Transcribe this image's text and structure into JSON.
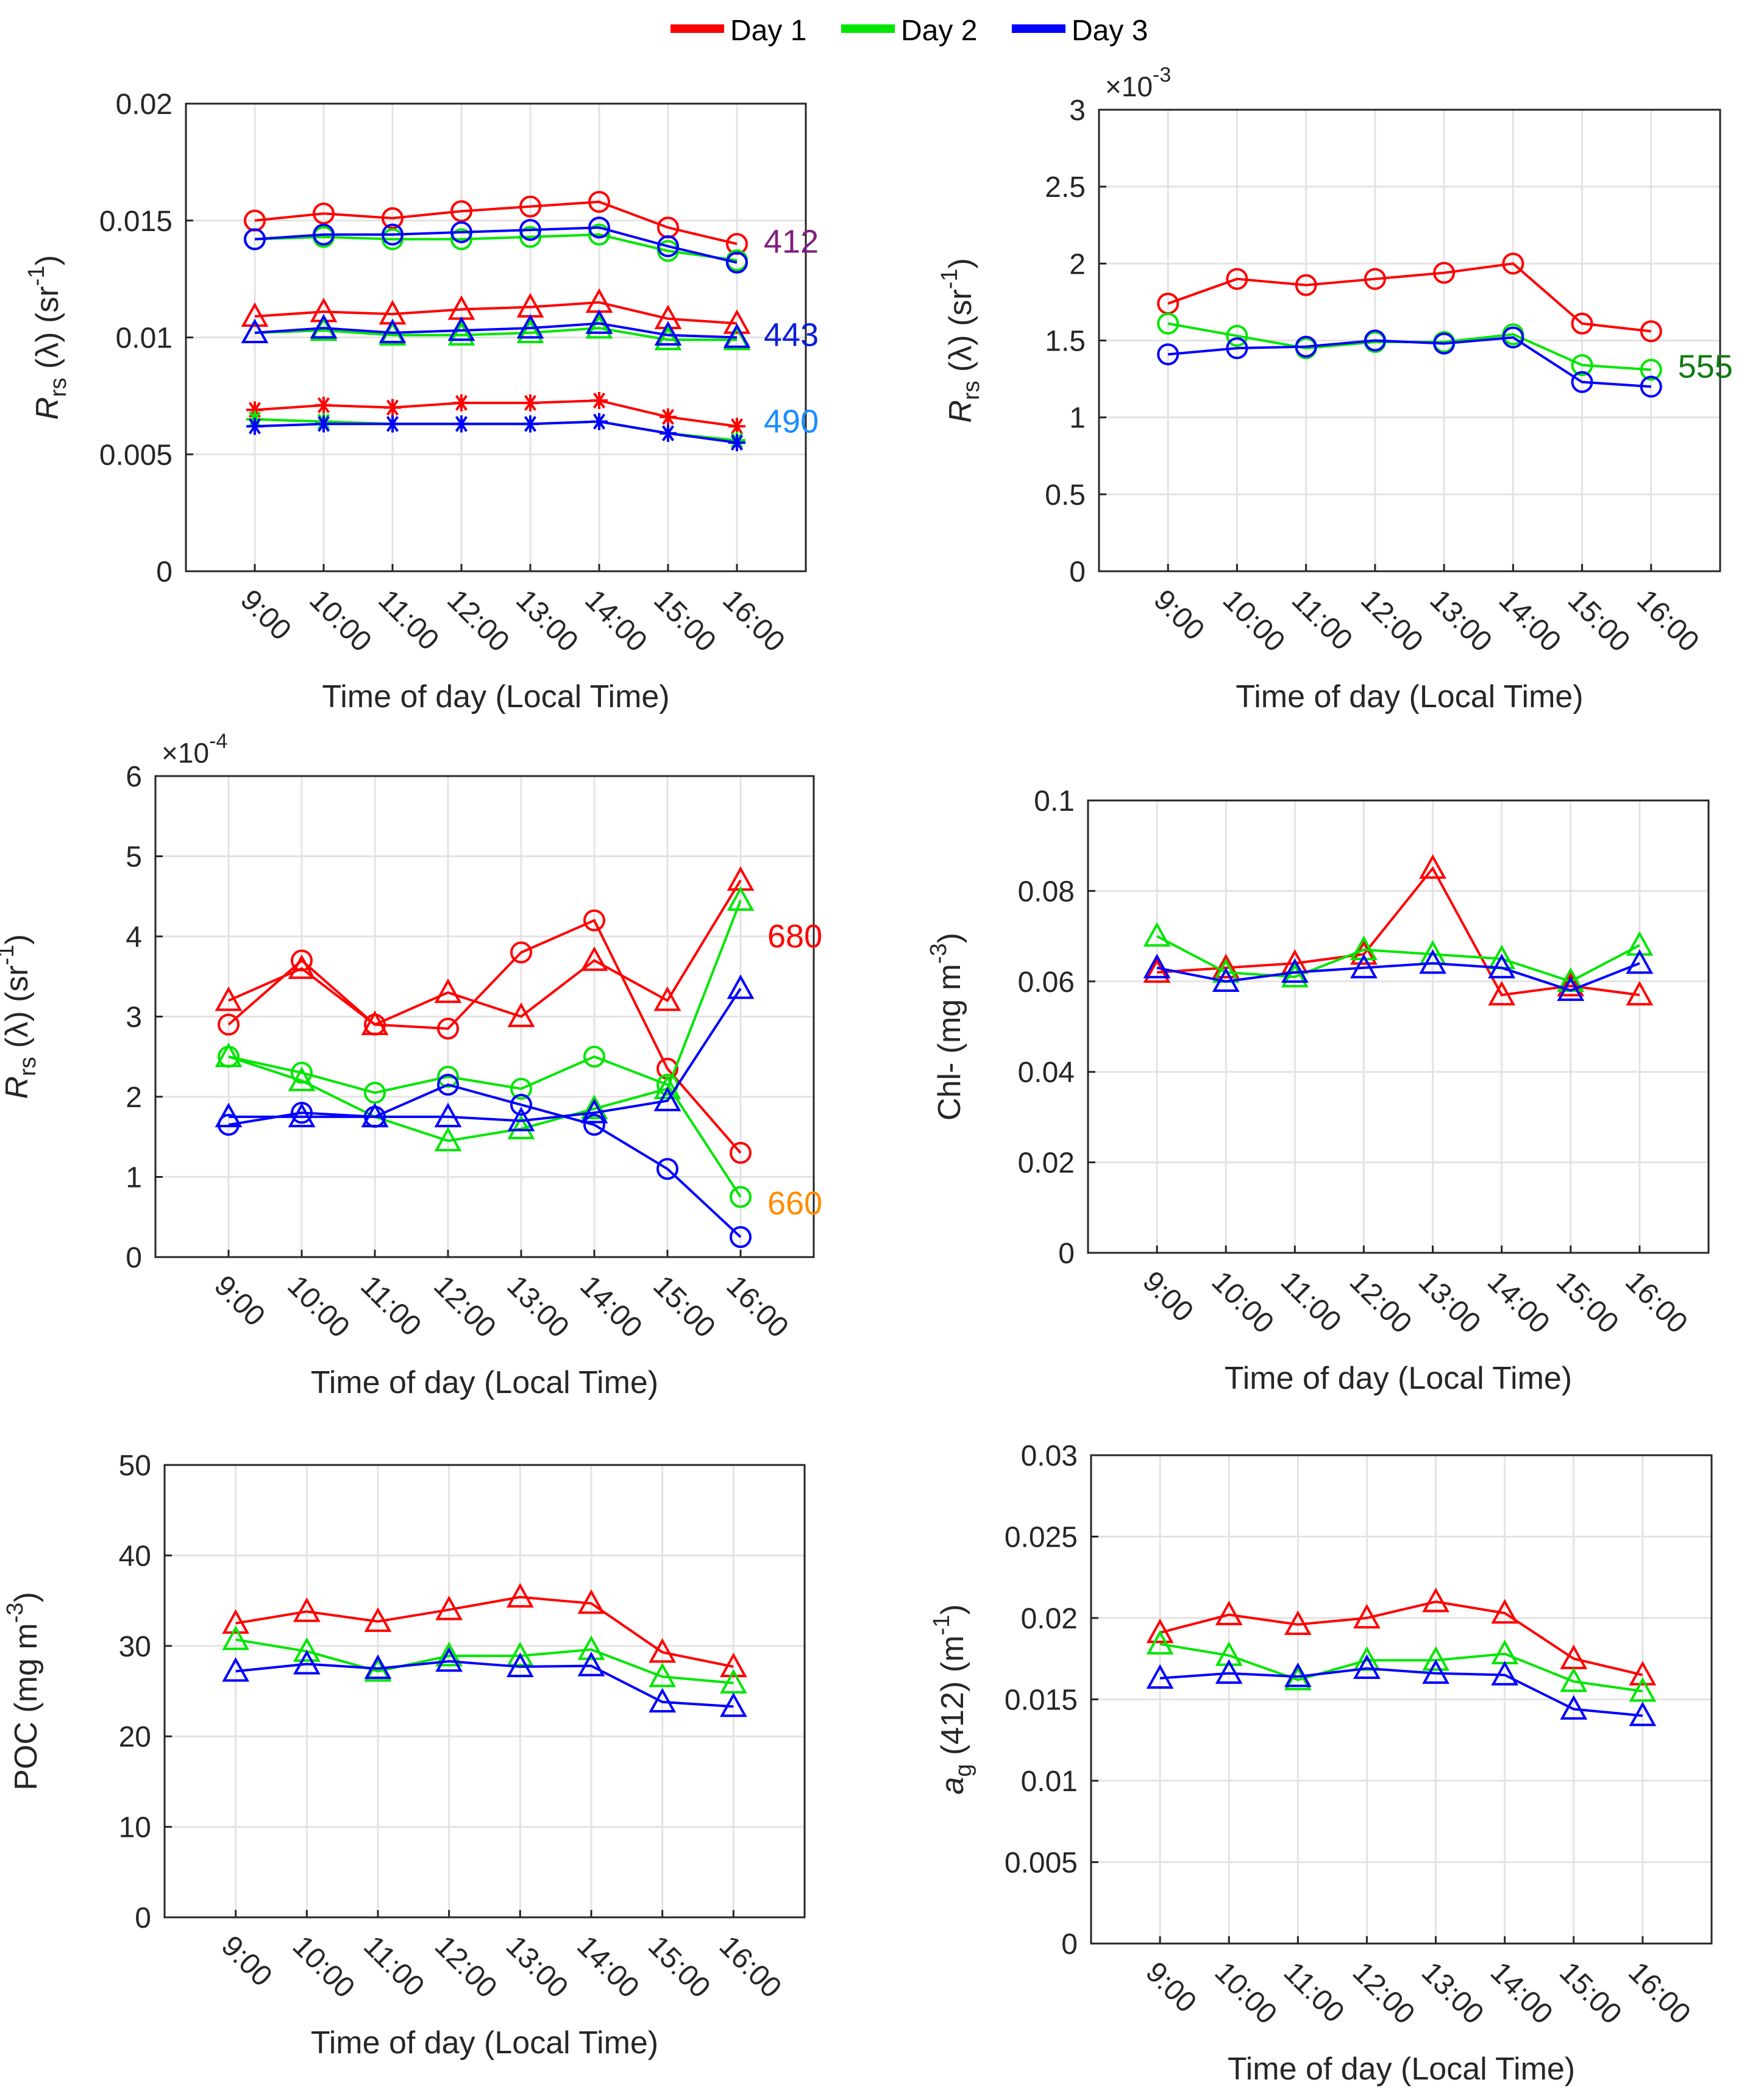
{
  "legend": [
    {
      "label": "Day 1",
      "color": "#ff0000"
    },
    {
      "label": "Day 2",
      "color": "#00e600"
    },
    {
      "label": "Day 3",
      "color": "#0000ff"
    }
  ],
  "chart_data": [
    {
      "id": "rrs-blue",
      "type": "line",
      "categories": [
        "9:00",
        "10:00",
        "11:00",
        "12:00",
        "13:00",
        "14:00",
        "15:00",
        "16:00"
      ],
      "xlabel": "Time of day (Local Time)",
      "ylabel": "R_rs(λ) (sr^-1)",
      "ylim": [
        0,
        0.02
      ],
      "yticks": [
        0,
        0.005,
        0.01,
        0.015,
        0.02
      ],
      "ytick_labels": [
        "0",
        "0.005",
        "0.01",
        "0.015",
        "0.02"
      ],
      "exponent": "",
      "grid": true,
      "series": [
        {
          "day": "Day 1",
          "band": "412",
          "marker": "circle",
          "values": [
            0.015,
            0.0153,
            0.0151,
            0.0154,
            0.0156,
            0.0158,
            0.0147,
            0.014
          ]
        },
        {
          "day": "Day 2",
          "band": "412",
          "marker": "circle",
          "values": [
            0.0142,
            0.0143,
            0.0142,
            0.0142,
            0.0143,
            0.0144,
            0.0137,
            0.0133
          ]
        },
        {
          "day": "Day 3",
          "band": "412",
          "marker": "circle",
          "values": [
            0.0142,
            0.0144,
            0.0144,
            0.0145,
            0.0146,
            0.0147,
            0.0139,
            0.0132
          ]
        },
        {
          "day": "Day 1",
          "band": "443",
          "marker": "triangle",
          "values": [
            0.0109,
            0.0111,
            0.011,
            0.0112,
            0.0113,
            0.0115,
            0.0108,
            0.0106
          ]
        },
        {
          "day": "Day 2",
          "band": "443",
          "marker": "triangle",
          "values": [
            0.0102,
            0.0103,
            0.0101,
            0.0101,
            0.0102,
            0.0104,
            0.0099,
            0.0099
          ]
        },
        {
          "day": "Day 3",
          "band": "443",
          "marker": "triangle",
          "values": [
            0.0102,
            0.0104,
            0.0102,
            0.0103,
            0.0104,
            0.0106,
            0.0101,
            0.01
          ]
        },
        {
          "day": "Day 1",
          "band": "490",
          "marker": "asterisk",
          "values": [
            0.0069,
            0.0071,
            0.007,
            0.0072,
            0.0072,
            0.0073,
            0.0066,
            0.0062
          ]
        },
        {
          "day": "Day 2",
          "band": "490",
          "marker": "asterisk",
          "values": [
            0.0065,
            0.0064,
            0.0063,
            0.0063,
            0.0063,
            0.0064,
            0.0059,
            0.0056
          ]
        },
        {
          "day": "Day 3",
          "band": "490",
          "marker": "asterisk",
          "values": [
            0.0062,
            0.0063,
            0.0063,
            0.0063,
            0.0063,
            0.0064,
            0.0059,
            0.0055
          ]
        }
      ],
      "annotations": [
        {
          "text": "412",
          "y": 0.0141,
          "color": "#7e1e80"
        },
        {
          "text": "443",
          "y": 0.0101,
          "color": "#0a1ed8"
        },
        {
          "text": "490",
          "y": 0.0064,
          "color": "#1a8cff"
        }
      ]
    },
    {
      "id": "rrs-555",
      "type": "line",
      "categories": [
        "9:00",
        "10:00",
        "11:00",
        "12:00",
        "13:00",
        "14:00",
        "15:00",
        "16:00"
      ],
      "xlabel": "Time of day (Local Time)",
      "ylabel": "R_rs(λ) (sr^-1)",
      "ylim": [
        0,
        3
      ],
      "yticks": [
        0,
        0.5,
        1,
        1.5,
        2,
        2.5,
        3
      ],
      "ytick_labels": [
        "0",
        "0.5",
        "1",
        "1.5",
        "2",
        "2.5",
        "3"
      ],
      "exponent": "-3",
      "grid": true,
      "series": [
        {
          "day": "Day 1",
          "band": "555",
          "marker": "circle",
          "values": [
            1.74,
            1.9,
            1.86,
            1.9,
            1.94,
            2.0,
            1.61,
            1.56
          ]
        },
        {
          "day": "Day 2",
          "band": "555",
          "marker": "circle",
          "values": [
            1.61,
            1.53,
            1.45,
            1.49,
            1.49,
            1.54,
            1.34,
            1.31
          ]
        },
        {
          "day": "Day 3",
          "band": "555",
          "marker": "circle",
          "values": [
            1.41,
            1.45,
            1.46,
            1.5,
            1.48,
            1.52,
            1.23,
            1.2
          ]
        }
      ],
      "annotations": [
        {
          "text": "555",
          "y": 1.33,
          "color": "#117a11"
        }
      ]
    },
    {
      "id": "rrs-red",
      "type": "line",
      "categories": [
        "9:00",
        "10:00",
        "11:00",
        "12:00",
        "13:00",
        "14:00",
        "15:00",
        "16:00"
      ],
      "xlabel": "Time of day (Local Time)",
      "ylabel": "R_rs(λ) (sr^-1)",
      "ylim": [
        0,
        6
      ],
      "yticks": [
        0,
        1,
        2,
        3,
        4,
        5,
        6
      ],
      "ytick_labels": [
        "0",
        "1",
        "2",
        "3",
        "4",
        "5",
        "6"
      ],
      "exponent": "-4",
      "grid": true,
      "series": [
        {
          "day": "Day 1",
          "band": "680",
          "marker": "triangle",
          "values": [
            3.2,
            3.6,
            2.9,
            3.3,
            3.0,
            3.7,
            3.2,
            4.7
          ]
        },
        {
          "day": "Day 1",
          "band": "660",
          "marker": "circle",
          "values": [
            2.9,
            3.7,
            2.9,
            2.85,
            3.8,
            4.2,
            2.35,
            1.3
          ]
        },
        {
          "day": "Day 2",
          "band": "680",
          "marker": "triangle",
          "values": [
            2.5,
            2.2,
            1.75,
            1.45,
            1.6,
            1.85,
            2.1,
            4.45
          ]
        },
        {
          "day": "Day 2",
          "band": "660",
          "marker": "circle",
          "values": [
            2.5,
            2.3,
            2.05,
            2.25,
            2.1,
            2.5,
            2.15,
            0.75
          ]
        },
        {
          "day": "Day 3",
          "band": "680",
          "marker": "triangle",
          "values": [
            1.75,
            1.75,
            1.75,
            1.75,
            1.7,
            1.8,
            1.95,
            3.35
          ]
        },
        {
          "day": "Day 3",
          "band": "660",
          "marker": "circle",
          "values": [
            1.65,
            1.8,
            1.75,
            2.15,
            1.9,
            1.65,
            1.1,
            0.25
          ]
        }
      ],
      "annotations": [
        {
          "text": "680",
          "y": 4.0,
          "color": "#ff0000"
        },
        {
          "text": "660",
          "y": 0.67,
          "color": "#ff8c00"
        }
      ]
    },
    {
      "id": "chl",
      "type": "line",
      "categories": [
        "9:00",
        "10:00",
        "11:00",
        "12:00",
        "13:00",
        "14:00",
        "15:00",
        "16:00"
      ],
      "xlabel": "Time of day (Local Time)",
      "ylabel": "Chl-(mg m^-3)",
      "ylim": [
        0,
        0.1
      ],
      "yticks": [
        0,
        0.02,
        0.04,
        0.06,
        0.08,
        0.1
      ],
      "ytick_labels": [
        "0",
        "0.02",
        "0.04",
        "0.06",
        "0.08",
        "0.1"
      ],
      "exponent": "",
      "grid": true,
      "series": [
        {
          "day": "Day 1",
          "marker": "triangle",
          "values": [
            0.062,
            0.063,
            0.064,
            0.066,
            0.085,
            0.057,
            0.059,
            0.057
          ]
        },
        {
          "day": "Day 2",
          "marker": "triangle",
          "values": [
            0.07,
            0.062,
            0.061,
            0.067,
            0.066,
            0.065,
            0.06,
            0.068
          ]
        },
        {
          "day": "Day 3",
          "marker": "triangle",
          "values": [
            0.063,
            0.06,
            0.062,
            0.063,
            0.064,
            0.063,
            0.058,
            0.064
          ]
        }
      ],
      "annotations": []
    },
    {
      "id": "poc",
      "type": "line",
      "categories": [
        "9:00",
        "10:00",
        "11:00",
        "12:00",
        "13:00",
        "14:00",
        "15:00",
        "16:00"
      ],
      "xlabel": "Time of day (Local Time)",
      "ylabel": "POC (mg m^-3)",
      "ylim": [
        0,
        50
      ],
      "yticks": [
        0,
        10,
        20,
        30,
        40,
        50
      ],
      "ytick_labels": [
        "0",
        "10",
        "20",
        "30",
        "40",
        "50"
      ],
      "exponent": "",
      "grid": true,
      "series": [
        {
          "day": "Day 1",
          "marker": "triangle",
          "values": [
            32.5,
            33.8,
            32.7,
            34.0,
            35.4,
            34.7,
            29.3,
            27.7
          ]
        },
        {
          "day": "Day 2",
          "marker": "triangle",
          "values": [
            30.7,
            29.4,
            27.2,
            28.9,
            28.9,
            29.6,
            26.6,
            25.9
          ]
        },
        {
          "day": "Day 3",
          "marker": "triangle",
          "values": [
            27.2,
            28.0,
            27.5,
            28.3,
            27.7,
            27.8,
            23.8,
            23.3
          ]
        }
      ],
      "annotations": []
    },
    {
      "id": "ag412",
      "type": "line",
      "categories": [
        "9:00",
        "10:00",
        "11:00",
        "12:00",
        "13:00",
        "14:00",
        "15:00",
        "16:00"
      ],
      "xlabel": "Time of day (Local Time)",
      "ylabel": "a_g(412) (m^-1)",
      "ylim": [
        0,
        0.03
      ],
      "yticks": [
        0,
        0.005,
        0.01,
        0.015,
        0.02,
        0.025,
        0.03
      ],
      "ytick_labels": [
        "0",
        "0.005",
        "0.01",
        "0.015",
        "0.02",
        "0.025",
        "0.03"
      ],
      "exponent": "",
      "grid": true,
      "series": [
        {
          "day": "Day 1",
          "marker": "triangle",
          "values": [
            0.0191,
            0.0202,
            0.0196,
            0.02,
            0.021,
            0.0203,
            0.0175,
            0.0165
          ]
        },
        {
          "day": "Day 2",
          "marker": "triangle",
          "values": [
            0.0184,
            0.0177,
            0.0162,
            0.0174,
            0.0174,
            0.0178,
            0.0161,
            0.0155
          ]
        },
        {
          "day": "Day 3",
          "marker": "triangle",
          "values": [
            0.0163,
            0.0166,
            0.0164,
            0.0169,
            0.0166,
            0.0165,
            0.0144,
            0.014
          ]
        }
      ],
      "annotations": []
    }
  ]
}
